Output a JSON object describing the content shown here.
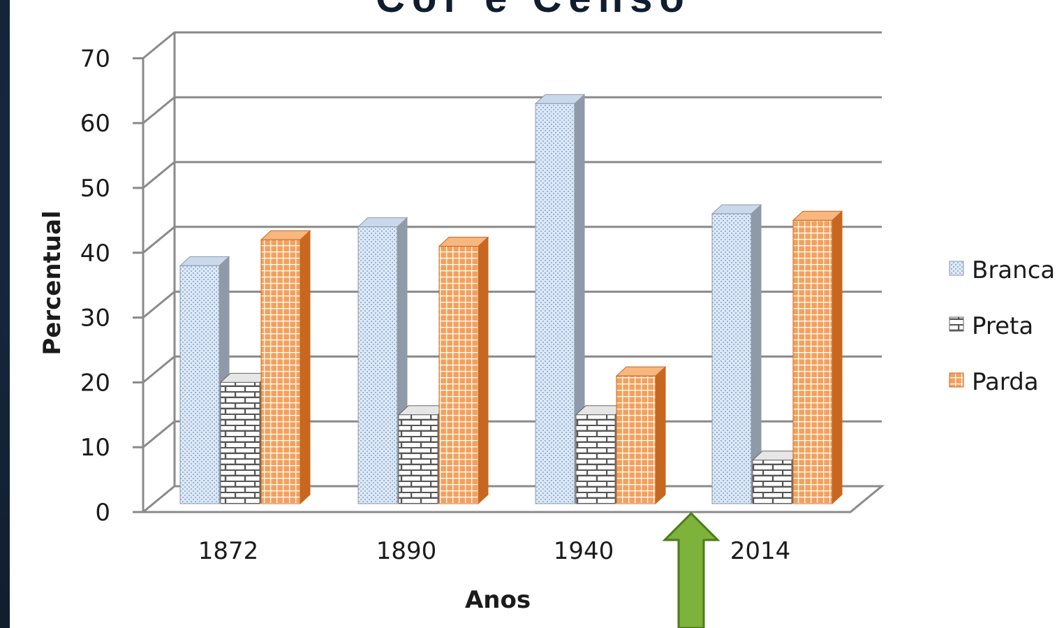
{
  "slide": {
    "heading": "Cor e Censo",
    "background_color": "#16263a",
    "arrow_color": "#7db33a"
  },
  "chart_data": {
    "type": "bar",
    "is_3d": true,
    "categories": [
      "1872",
      "1890",
      "1940",
      "2014"
    ],
    "series": [
      {
        "name": "Branca",
        "values": [
          38,
          44,
          63,
          46
        ],
        "color": "#dce8f7",
        "side_color": "#8e9aa8",
        "pattern": "dotted"
      },
      {
        "name": "Preta",
        "values": [
          20,
          15,
          15,
          8
        ],
        "color": "#ffffff",
        "side_color": "#666666",
        "pattern": "brick"
      },
      {
        "name": "Parda",
        "values": [
          42,
          41,
          21,
          45
        ],
        "color": "#f4a15c",
        "side_color": "#c8671f",
        "pattern": "grid"
      }
    ],
    "xlabel": "Anos",
    "ylabel": "Percentual",
    "ylim": [
      0,
      70
    ],
    "yticks": [
      0,
      10,
      20,
      30,
      40,
      50,
      60,
      70
    ],
    "grid": true,
    "legend_position": "right"
  }
}
